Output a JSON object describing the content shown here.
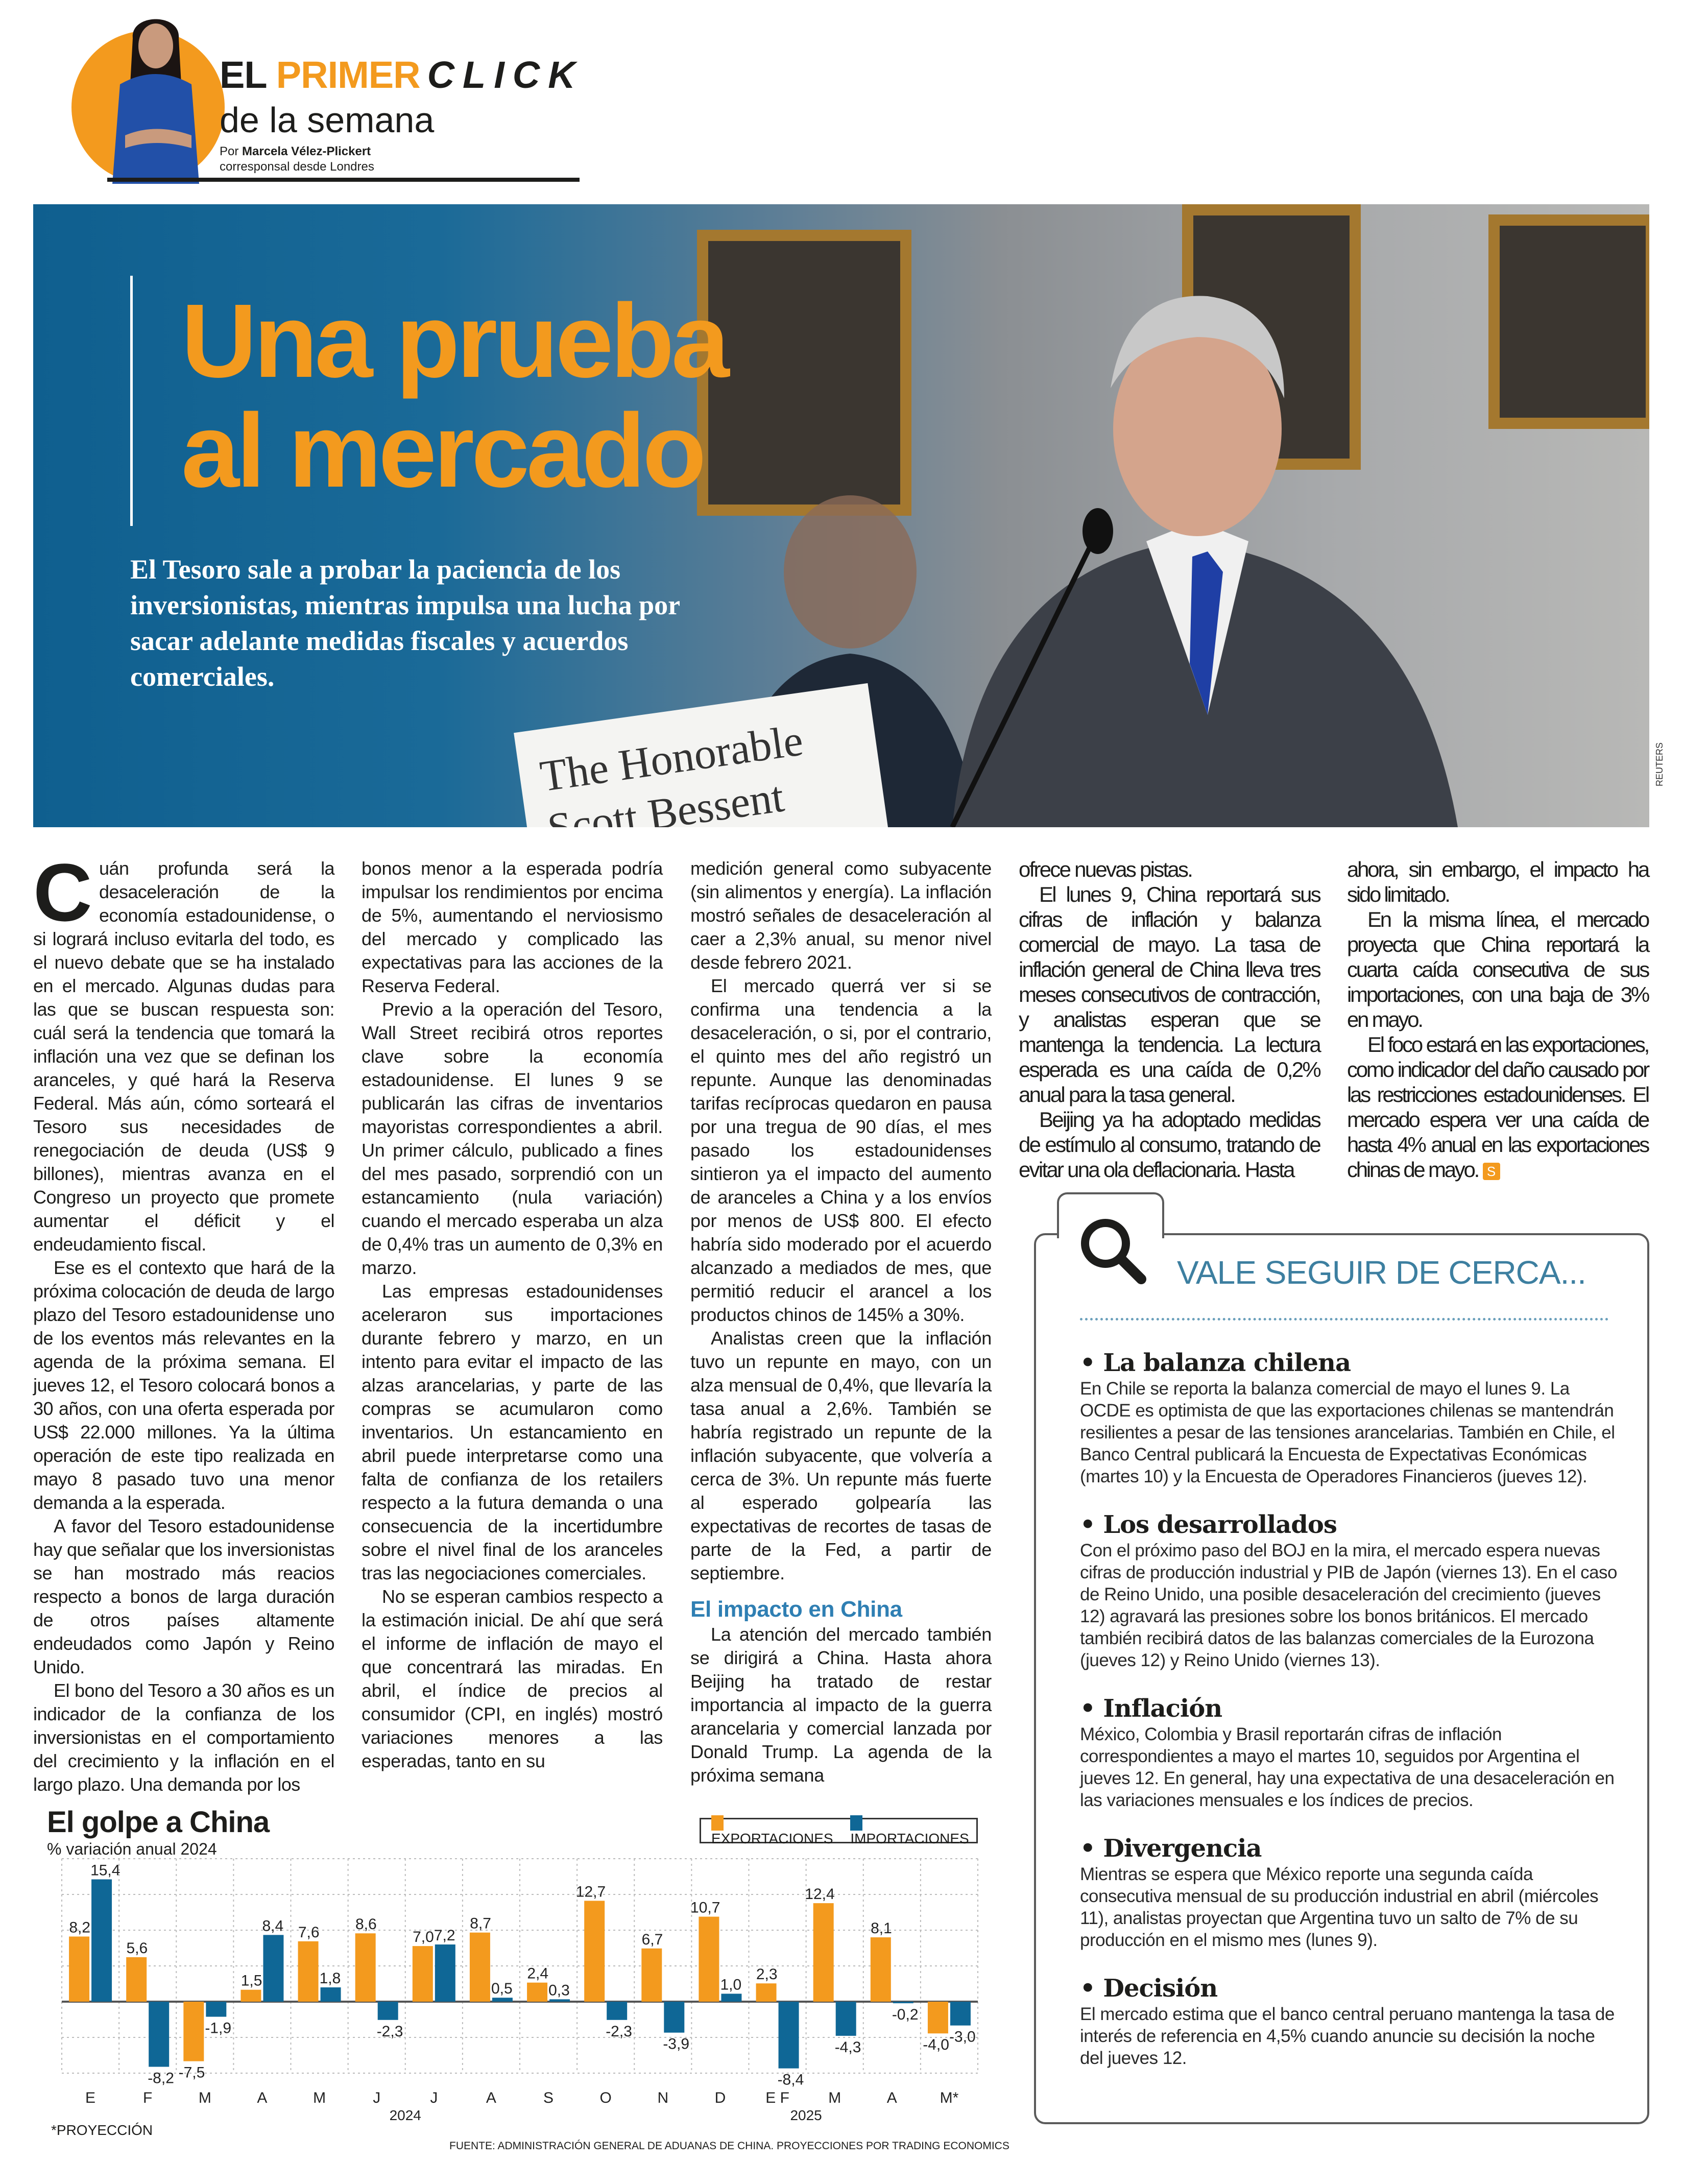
{
  "header": {
    "brand_el": "EL",
    "brand_primer": "PRIMER",
    "brand_click": "CLICK",
    "brand_line2": "de la semana",
    "byline_prefix": "Por",
    "author": "Marcela Vélez-Plickert",
    "author_role": "corresponsal desde Londres",
    "accent_color": "#f39a1e"
  },
  "hero": {
    "headline_line1": "Una prueba",
    "headline_line2": "al mercado",
    "deck": "El Tesoro sale a probar la paciencia de los inversionistas, mientras impulsa una lucha por sacar adelante medidas fiscales y acuerdos comerciales.",
    "namecard_line1": "The Honorable",
    "namecard_line2": "Scott Bessent",
    "photo_credit": "REUTERS"
  },
  "article": {
    "drop_cap": "C",
    "columns": [
      {
        "paragraphs": [
          "uán profunda será la desaceleración de la economía estadounidense, o si logrará incluso evitarla del todo, es el nuevo debate que se ha instalado en el mercado. Algunas dudas para las que se buscan respuesta son: cuál será la tendencia que tomará la inflación una vez que se definan los aranceles, y qué hará la Reserva Federal. Más aún, cómo sorteará el Tesoro sus necesidades de renegociación de deuda (US$ 9 billones), mientras avanza en el Congreso un proyecto que promete aumentar el déficit y el endeudamiento fiscal.",
          "Ese es el contexto que hará de la próxima colocación de deuda de largo plazo del Tesoro estadounidense uno de los eventos más relevantes en la agenda de la próxima semana. El jueves 12, el Tesoro colocará bonos a 30 años, con una oferta esperada por US$ 22.000 millones. Ya la última operación de este tipo realizada en mayo 8 pasado tuvo una menor demanda a la esperada.",
          "A favor del Tesoro estadounidense hay que señalar que los inversionistas se han mostrado más reacios respecto a bonos de larga duración de otros países altamente endeudados como Japón y Reino Unido.",
          "El bono del Tesoro a 30 años es un indicador de la confianza de los inversionistas en el comportamiento del crecimiento y la inflación en el largo plazo. Una demanda por los"
        ]
      },
      {
        "paragraphs": [
          "bonos menor a la esperada podría impulsar los rendimientos por encima de 5%, aumentando el nerviosismo del mercado y complicado las expectativas para las acciones de la Reserva Federal.",
          "Previo a la operación del Tesoro, Wall Street recibirá otros reportes clave sobre la economía estadounidense. El lunes 9 se publicarán las cifras de inventarios mayoristas correspondientes a abril. Un primer cálculo, publicado a fines del mes pasado, sorprendió con un estancamiento (nula variación) cuando el mercado esperaba un alza de 0,4% tras un aumento de 0,3% en marzo.",
          "Las empresas estadounidenses aceleraron sus importaciones durante febrero y marzo, en un intento para evitar el impacto de las alzas arancelarias, y parte de las compras se acumularon como inventarios. Un estancamiento en abril puede interpretarse como una falta de confianza de los retailers respecto a la futura demanda o una consecuencia de la incertidumbre sobre el nivel final de los aranceles tras las negociaciones comerciales.",
          "No se esperan cambios respecto a la estimación inicial. De ahí que será el informe de inflación de mayo el que concentrará las miradas. En abril, el índice de precios al consumidor (CPI, en inglés) mostró variaciones menores a las esperadas, tanto en su"
        ]
      },
      {
        "paragraphs": [
          "medición general como subyacente (sin alimentos y energía). La inflación mostró señales de desaceleración al caer a 2,3% anual, su menor nivel desde febrero 2021.",
          "El mercado querrá ver si se confirma una tendencia a la desaceleración, o si, por el contrario, el quinto mes del año registró un repunte. Aunque las denominadas tarifas recíprocas quedaron en pausa por una tregua de 90 días, el mes pasado los estadounidenses sintieron ya el impacto del aumento de aranceles a China y a los envíos por menos de US$ 800. El efecto habría sido moderado por el acuerdo alcanzado a mediados de mes, que permitió reducir el arancel a los productos chinos de 145% a 30%.",
          "Analistas creen que la inflación tuvo un repunte en mayo, con un alza mensual de 0,4%, que llevaría la tasa anual a 2,6%. También se habría registrado un repunte de la inflación subyacente, que volvería a cerca de 3%. Un repunte más fuerte al esperado golpearía las expectativas de recortes de tasas de parte de la Fed, a partir de septiembre."
        ],
        "subhead": "El impacto en China",
        "after_subhead": "La atención del mercado también se dirigirá a China. Hasta ahora Beijing ha tratado de restar importancia al impacto de la guerra arancelaria y comercial lanzada por Donald Trump. La agenda de la próxima semana"
      },
      {
        "paragraphs": [
          "ofrece nuevas pistas.",
          "El lunes 9, China reportará sus cifras de inflación y balanza comercial de mayo. La tasa de inflación general de China lleva tres meses consecutivos de contracción, y analistas esperan que se mantenga la tendencia. La lectura esperada es una caída de 0,2% anual para la tasa general.",
          "Beijing ya ha adoptado medidas de estímulo al consumo, tratando de evitar una ola deflacionaria. Hasta"
        ]
      },
      {
        "paragraphs": [
          "ahora, sin embargo, el impacto ha sido limitado.",
          "En la misma línea, el mercado proyecta que China reportará la cuarta caída consecutiva de sus importaciones, con una baja de 3% en mayo.",
          "El foco estará en las exportaciones, como indicador del daño causado por las restricciones estadounidenses. El mercado espera ver una caída de hasta 4% anual en las exportaciones chinas de mayo."
        ],
        "end_mark": "S"
      }
    ]
  },
  "sidebar_box": {
    "icon": "magnifier-icon",
    "title": "VALE SEGUIR DE CERCA...",
    "title_color": "#3d7fa0",
    "items": [
      {
        "title": "La balanza chilena",
        "body": "En Chile se reporta la balanza comercial de mayo el lunes 9. La OCDE es optimista de que las exportaciones chilenas se mantendrán resilientes a pesar de las tensiones arancelarias. También en Chile, el Banco Central publicará la Encuesta de Expectativas Económicas (martes 10) y la Encuesta de Operadores Financieros (jueves 12)."
      },
      {
        "title": "Los desarrollados",
        "body": "Con el próximo paso del BOJ en la mira, el mercado espera nuevas cifras de producción industrial y PIB de Japón (viernes 13). En el caso de Reino Unido, una posible desaceleración del crecimiento (jueves 12) agravará las presiones sobre los bonos británicos. El mercado también recibirá datos de las balanzas comerciales de la Eurozona (jueves 12) y Reino Unido (viernes 13)."
      },
      {
        "title": "Inflación",
        "body": "México, Colombia y Brasil reportarán cifras de inflación correspondientes a mayo el martes 10, seguidos por Argentina el jueves 12. En general, hay una expectativa de una desaceleración en las variaciones mensuales e los índices de precios."
      },
      {
        "title": "Divergencia",
        "body": "Mientras se espera que México reporte una segunda caída consecutiva mensual de su producción industrial en abril (miércoles 11), analistas proyectan que Argentina tuvo un salto de 7% de su producción en el mismo mes (lunes 9)."
      },
      {
        "title": "Decisión",
        "body": "El mercado estima que el banco central peruano mantenga la tasa de interés de referencia en 4,5% cuando anuncie su decisión la noche del jueves 12."
      }
    ]
  },
  "chart_data": {
    "type": "bar",
    "title": "El golpe a China",
    "subtitle": "% variación anual 2024",
    "categories": [
      "E",
      "F",
      "M",
      "A",
      "M",
      "J",
      "J",
      "A",
      "S",
      "O",
      "N",
      "D",
      "E F",
      "M",
      "A",
      "M*"
    ],
    "year_labels": [
      {
        "label": "2024",
        "category_index": 6
      },
      {
        "label": "2025",
        "category_index": 13
      }
    ],
    "series": [
      {
        "name": "EXPORTACIONES",
        "color": "#f39a1e",
        "values": [
          8.2,
          5.6,
          -7.5,
          1.5,
          7.6,
          8.6,
          7.0,
          8.7,
          2.4,
          12.7,
          6.7,
          10.7,
          2.3,
          12.4,
          8.1,
          -4.0
        ]
      },
      {
        "name": "IMPORTACIONES",
        "color": "#0f6796",
        "values": [
          15.4,
          -8.2,
          -1.9,
          8.4,
          1.8,
          -2.3,
          7.2,
          0.5,
          0.3,
          -2.3,
          -3.9,
          1.0,
          -8.4,
          -4.3,
          -0.2,
          -3.0
        ]
      }
    ],
    "ylim": [
      -9,
      18
    ],
    "grid": true,
    "legend": "top-right",
    "footnote": "*PROYECCIÓN",
    "source": "FUENTE: ADMINISTRACIÓN GENERAL DE ADUANAS DE CHINA. PROYECCIONES POR TRADING ECONOMICS"
  }
}
